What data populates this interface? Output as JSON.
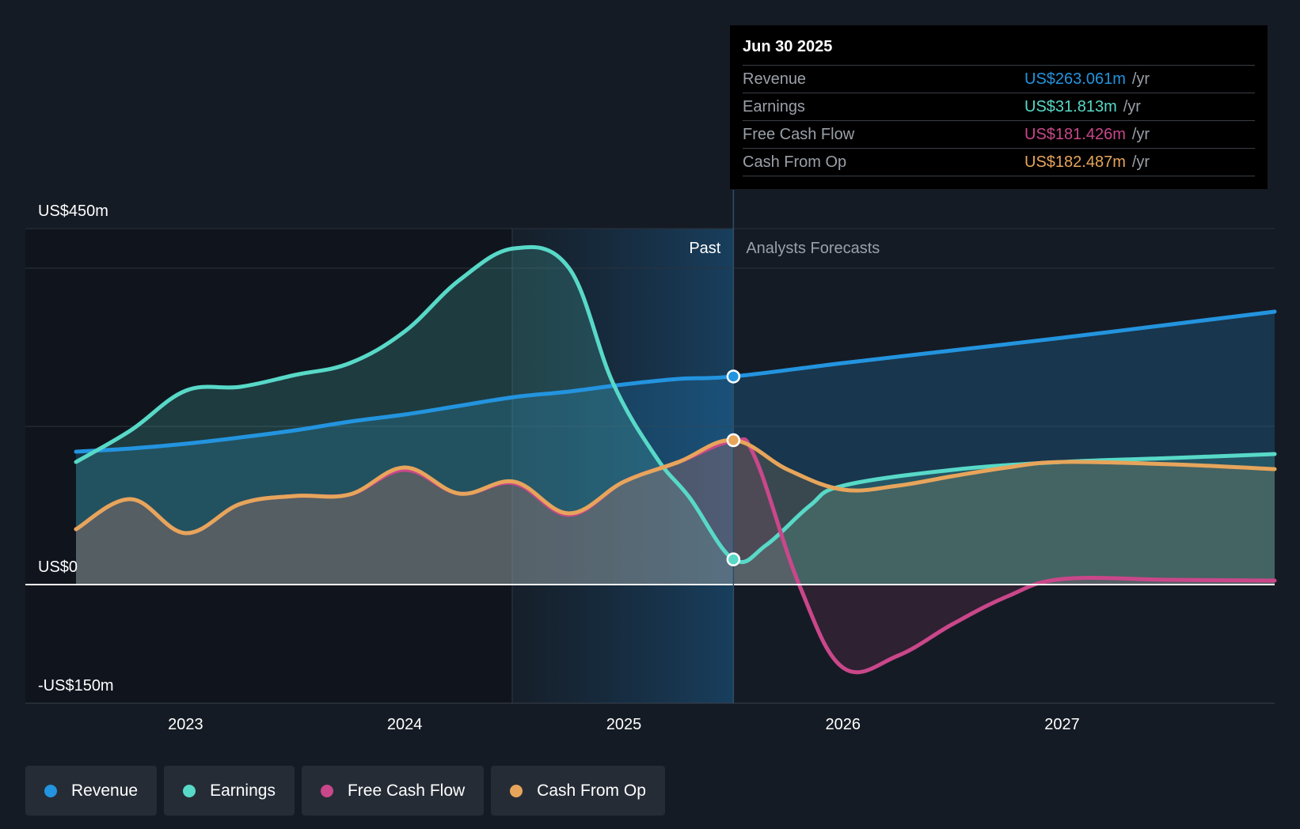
{
  "chart_data": {
    "type": "area",
    "y_axis": {
      "labels": [
        "US$450m",
        "US$0",
        "-US$150m"
      ],
      "ylim": [
        -150,
        450
      ]
    },
    "x_axis": {
      "ticks": [
        "2023",
        "2024",
        "2025",
        "2026",
        "2027"
      ],
      "xlim": [
        2022.5,
        2027.97
      ]
    },
    "regions": {
      "past_label": "Past",
      "forecast_label": "Analysts Forecasts",
      "divider_x": 2025.5
    },
    "series": [
      {
        "name": "Revenue",
        "color": "#2394df",
        "points": [
          [
            2022.5,
            168
          ],
          [
            2022.75,
            172
          ],
          [
            2023.0,
            178
          ],
          [
            2023.25,
            186
          ],
          [
            2023.5,
            195
          ],
          [
            2023.75,
            206
          ],
          [
            2024.0,
            215
          ],
          [
            2024.25,
            226
          ],
          [
            2024.5,
            237
          ],
          [
            2024.75,
            244
          ],
          [
            2025.0,
            253
          ],
          [
            2025.25,
            260
          ],
          [
            2025.5,
            263.061
          ],
          [
            2026.0,
            280
          ],
          [
            2026.5,
            296
          ],
          [
            2027.0,
            312
          ],
          [
            2027.5,
            329
          ],
          [
            2027.97,
            345
          ]
        ]
      },
      {
        "name": "Earnings",
        "color": "#58d9c8",
        "points": [
          [
            2022.5,
            155
          ],
          [
            2022.75,
            195
          ],
          [
            2023.0,
            245
          ],
          [
            2023.25,
            250
          ],
          [
            2023.5,
            265
          ],
          [
            2023.75,
            280
          ],
          [
            2024.0,
            320
          ],
          [
            2024.25,
            385
          ],
          [
            2024.5,
            425
          ],
          [
            2024.75,
            400
          ],
          [
            2024.95,
            255
          ],
          [
            2025.15,
            160
          ],
          [
            2025.3,
            110
          ],
          [
            2025.5,
            31.813
          ],
          [
            2025.65,
            50
          ],
          [
            2025.85,
            100
          ],
          [
            2026.0,
            125
          ],
          [
            2026.5,
            145
          ],
          [
            2027.0,
            155
          ],
          [
            2027.5,
            160
          ],
          [
            2027.97,
            165
          ]
        ]
      },
      {
        "name": "Free Cash Flow",
        "color": "#c9478a",
        "points": [
          [
            2022.5,
            70
          ],
          [
            2022.75,
            108
          ],
          [
            2023.0,
            65
          ],
          [
            2023.25,
            102
          ],
          [
            2023.5,
            112
          ],
          [
            2023.75,
            114
          ],
          [
            2024.0,
            145
          ],
          [
            2024.25,
            115
          ],
          [
            2024.5,
            128
          ],
          [
            2024.75,
            88
          ],
          [
            2025.0,
            130
          ],
          [
            2025.25,
            155
          ],
          [
            2025.5,
            181.426
          ],
          [
            2025.6,
            160
          ],
          [
            2025.8,
            0
          ],
          [
            2026.0,
            -105
          ],
          [
            2026.25,
            -90
          ],
          [
            2026.5,
            -50
          ],
          [
            2026.75,
            -15
          ],
          [
            2027.0,
            7
          ],
          [
            2027.5,
            6
          ],
          [
            2027.97,
            5
          ]
        ]
      },
      {
        "name": "Cash From Op",
        "color": "#e7a55b",
        "points": [
          [
            2022.5,
            70
          ],
          [
            2022.75,
            108
          ],
          [
            2023.0,
            65
          ],
          [
            2023.25,
            102
          ],
          [
            2023.5,
            112
          ],
          [
            2023.75,
            114
          ],
          [
            2024.0,
            148
          ],
          [
            2024.25,
            115
          ],
          [
            2024.5,
            130
          ],
          [
            2024.75,
            90
          ],
          [
            2025.0,
            130
          ],
          [
            2025.25,
            155
          ],
          [
            2025.5,
            182.487
          ],
          [
            2025.75,
            145
          ],
          [
            2026.0,
            120
          ],
          [
            2026.25,
            125
          ],
          [
            2026.5,
            137
          ],
          [
            2026.75,
            148
          ],
          [
            2027.0,
            155
          ],
          [
            2027.5,
            152
          ],
          [
            2027.97,
            146
          ]
        ]
      }
    ],
    "highlight_x": 2025.5
  },
  "tooltip": {
    "date": "Jun 30 2025",
    "unit": "/yr",
    "rows": [
      {
        "label": "Revenue",
        "value": "US$263.061m",
        "color": "#2394df"
      },
      {
        "label": "Earnings",
        "value": "US$31.813m",
        "color": "#58d9c8"
      },
      {
        "label": "Free Cash Flow",
        "value": "US$181.426m",
        "color": "#c9478a"
      },
      {
        "label": "Cash From Op",
        "value": "US$182.487m",
        "color": "#e7a55b"
      }
    ]
  },
  "legend": [
    {
      "label": "Revenue",
      "color": "#2394df"
    },
    {
      "label": "Earnings",
      "color": "#58d9c8"
    },
    {
      "label": "Free Cash Flow",
      "color": "#c9478a"
    },
    {
      "label": "Cash From Op",
      "color": "#e7a55b"
    }
  ]
}
